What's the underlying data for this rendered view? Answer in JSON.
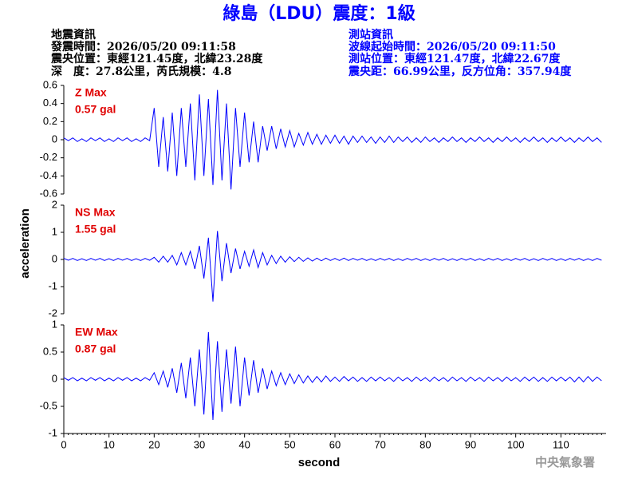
{
  "header": {
    "title": "綠島（LDU）震度：1級",
    "left": [
      "地震資訊",
      "發震時間：2026/05/20 09:11:58",
      "震央位置：東經121.45度，北緯23.28度",
      "深　度：27.8公里，芮氏規模：4.8"
    ],
    "right": [
      "測站資訊",
      "波線起始時間：2026/05/20 09:11:50",
      "測站位置：東經121.47度，北緯22.67度",
      "震央距：66.99公里，反方位角：357.94度"
    ],
    "footer": "中央氣象署"
  },
  "chart_data": [
    {
      "type": "line",
      "annotations": [
        "Z Max",
        "0.57 gal"
      ],
      "color": "#0000ff",
      "xlim": [
        0,
        120
      ],
      "ylim": [
        -0.6,
        0.6
      ],
      "yticks": [
        -0.6,
        -0.4,
        -0.2,
        0,
        0.2,
        0.4,
        0.6
      ],
      "x": [
        0,
        1,
        2,
        3,
        4,
        5,
        6,
        7,
        8,
        9,
        10,
        11,
        12,
        13,
        14,
        15,
        16,
        17,
        18,
        19,
        20,
        21,
        22,
        23,
        24,
        25,
        26,
        27,
        28,
        29,
        30,
        31,
        32,
        33,
        34,
        35,
        36,
        37,
        38,
        39,
        40,
        41,
        42,
        43,
        44,
        45,
        46,
        47,
        48,
        49,
        50,
        51,
        52,
        53,
        54,
        55,
        56,
        57,
        58,
        59,
        60,
        61,
        62,
        63,
        64,
        65,
        66,
        67,
        68,
        69,
        70,
        71,
        72,
        73,
        74,
        75,
        76,
        77,
        78,
        79,
        80,
        81,
        82,
        83,
        84,
        85,
        86,
        87,
        88,
        89,
        90,
        91,
        92,
        93,
        94,
        95,
        96,
        97,
        98,
        99,
        100,
        101,
        102,
        103,
        104,
        105,
        106,
        107,
        108,
        109,
        110,
        111,
        112,
        113,
        114,
        115,
        116,
        117,
        118,
        119
      ],
      "values": [
        0.02,
        -0.01,
        0.02,
        -0.02,
        0.01,
        -0.02,
        0.02,
        -0.01,
        0.02,
        -0.02,
        0.01,
        -0.02,
        0.02,
        -0.01,
        0.02,
        -0.02,
        0.01,
        -0.02,
        0.02,
        -0.01,
        0.35,
        -0.3,
        0.25,
        -0.35,
        0.3,
        -0.4,
        0.35,
        -0.3,
        0.4,
        -0.45,
        0.5,
        -0.4,
        0.45,
        -0.5,
        0.55,
        -0.45,
        0.4,
        -0.55,
        0.35,
        -0.3,
        0.3,
        -0.25,
        0.2,
        -0.25,
        0.15,
        -0.12,
        0.15,
        -0.1,
        0.12,
        -0.08,
        0.1,
        -0.08,
        0.07,
        -0.06,
        0.08,
        -0.05,
        0.06,
        -0.05,
        0.05,
        -0.04,
        0.05,
        -0.04,
        0.04,
        -0.05,
        0.04,
        -0.03,
        0.04,
        -0.03,
        0.03,
        -0.04,
        0.03,
        -0.03,
        0.04,
        -0.03,
        0.03,
        -0.02,
        0.03,
        -0.03,
        0.02,
        -0.03,
        0.03,
        -0.02,
        0.02,
        -0.03,
        0.02,
        -0.02,
        0.03,
        -0.02,
        0.02,
        -0.03,
        0.02,
        -0.02,
        0.03,
        -0.02,
        0.02,
        -0.03,
        0.02,
        -0.02,
        0.03,
        -0.02,
        0.02,
        -0.03,
        0.02,
        -0.02,
        0.03,
        -0.02,
        0.02,
        -0.03,
        0.02,
        -0.02,
        0.03,
        -0.02,
        0.02,
        -0.03,
        0.02,
        -0.02,
        0.03,
        -0.02,
        0.02,
        -0.03
      ]
    },
    {
      "type": "line",
      "annotations": [
        "NS Max",
        "1.55 gal"
      ],
      "color": "#0000ff",
      "y_label": "acceleration",
      "xlim": [
        0,
        120
      ],
      "ylim": [
        -2,
        2
      ],
      "yticks": [
        -2,
        -1,
        0,
        1,
        2
      ],
      "x": [
        0,
        1,
        2,
        3,
        4,
        5,
        6,
        7,
        8,
        9,
        10,
        11,
        12,
        13,
        14,
        15,
        16,
        17,
        18,
        19,
        20,
        21,
        22,
        23,
        24,
        25,
        26,
        27,
        28,
        29,
        30,
        31,
        32,
        33,
        34,
        35,
        36,
        37,
        38,
        39,
        40,
        41,
        42,
        43,
        44,
        45,
        46,
        47,
        48,
        49,
        50,
        51,
        52,
        53,
        54,
        55,
        56,
        57,
        58,
        59,
        60,
        61,
        62,
        63,
        64,
        65,
        66,
        67,
        68,
        69,
        70,
        71,
        72,
        73,
        74,
        75,
        76,
        77,
        78,
        79,
        80,
        81,
        82,
        83,
        84,
        85,
        86,
        87,
        88,
        89,
        90,
        91,
        92,
        93,
        94,
        95,
        96,
        97,
        98,
        99,
        100,
        101,
        102,
        103,
        104,
        105,
        106,
        107,
        108,
        109,
        110,
        111,
        112,
        113,
        114,
        115,
        116,
        117,
        118,
        119
      ],
      "values": [
        0.04,
        -0.03,
        0.04,
        -0.04,
        0.03,
        -0.04,
        0.04,
        -0.03,
        0.04,
        -0.04,
        0.03,
        -0.04,
        0.04,
        -0.03,
        0.04,
        -0.04,
        0.03,
        -0.04,
        0.04,
        -0.03,
        0.08,
        -0.1,
        0.12,
        -0.1,
        0.15,
        -0.2,
        0.25,
        -0.2,
        0.3,
        -0.35,
        0.5,
        -0.7,
        0.8,
        -1.55,
        1.05,
        -0.8,
        0.6,
        -0.5,
        0.4,
        -0.35,
        0.3,
        -0.25,
        0.35,
        -0.3,
        0.25,
        -0.2,
        0.15,
        -0.15,
        0.12,
        -0.1,
        0.1,
        -0.08,
        0.08,
        -0.07,
        0.06,
        -0.06,
        0.05,
        -0.05,
        0.05,
        -0.04,
        0.04,
        -0.04,
        0.05,
        -0.04,
        0.04,
        -0.03,
        0.04,
        -0.04,
        0.03,
        -0.04,
        0.04,
        -0.03,
        0.04,
        -0.04,
        0.03,
        -0.04,
        0.04,
        -0.03,
        0.04,
        -0.04,
        0.03,
        -0.04,
        0.04,
        -0.03,
        0.04,
        -0.04,
        0.03,
        -0.04,
        0.04,
        -0.03,
        0.04,
        -0.04,
        0.03,
        -0.04,
        0.04,
        -0.03,
        0.04,
        -0.04,
        0.03,
        -0.04,
        0.04,
        -0.03,
        0.04,
        -0.04,
        0.03,
        -0.04,
        0.04,
        -0.03,
        0.04,
        -0.04,
        0.03,
        -0.04,
        0.04,
        -0.03,
        0.04,
        -0.04,
        0.03,
        -0.04,
        0.04,
        -0.03
      ]
    },
    {
      "type": "line",
      "annotations": [
        "EW Max",
        "0.87 gal"
      ],
      "color": "#0000ff",
      "x_label": "second",
      "xlim": [
        0,
        120
      ],
      "ylim": [
        -1,
        1
      ],
      "yticks": [
        -1,
        -0.5,
        0,
        0.5,
        1
      ],
      "xticks": [
        0,
        10,
        20,
        30,
        40,
        50,
        60,
        70,
        80,
        90,
        100,
        110
      ],
      "x": [
        0,
        1,
        2,
        3,
        4,
        5,
        6,
        7,
        8,
        9,
        10,
        11,
        12,
        13,
        14,
        15,
        16,
        17,
        18,
        19,
        20,
        21,
        22,
        23,
        24,
        25,
        26,
        27,
        28,
        29,
        30,
        31,
        32,
        33,
        34,
        35,
        36,
        37,
        38,
        39,
        40,
        41,
        42,
        43,
        44,
        45,
        46,
        47,
        48,
        49,
        50,
        51,
        52,
        53,
        54,
        55,
        56,
        57,
        58,
        59,
        60,
        61,
        62,
        63,
        64,
        65,
        66,
        67,
        68,
        69,
        70,
        71,
        72,
        73,
        74,
        75,
        76,
        77,
        78,
        79,
        80,
        81,
        82,
        83,
        84,
        85,
        86,
        87,
        88,
        89,
        90,
        91,
        92,
        93,
        94,
        95,
        96,
        97,
        98,
        99,
        100,
        101,
        102,
        103,
        104,
        105,
        106,
        107,
        108,
        109,
        110,
        111,
        112,
        113,
        114,
        115,
        116,
        117,
        118,
        119
      ],
      "values": [
        0.03,
        -0.02,
        0.03,
        -0.03,
        0.02,
        -0.03,
        0.03,
        -0.02,
        0.03,
        -0.03,
        0.02,
        -0.03,
        0.03,
        -0.02,
        0.03,
        -0.03,
        0.02,
        -0.03,
        0.03,
        -0.02,
        0.12,
        -0.1,
        0.15,
        -0.15,
        0.2,
        -0.25,
        0.3,
        -0.35,
        0.4,
        -0.5,
        0.55,
        -0.65,
        0.87,
        -0.75,
        0.7,
        -0.6,
        0.55,
        -0.45,
        0.6,
        -0.5,
        0.4,
        -0.3,
        0.35,
        -0.25,
        0.2,
        -0.18,
        0.15,
        -0.12,
        0.12,
        -0.1,
        0.1,
        -0.08,
        0.08,
        -0.07,
        0.06,
        -0.06,
        0.05,
        -0.05,
        0.06,
        -0.04,
        0.04,
        -0.04,
        0.05,
        -0.03,
        0.04,
        -0.04,
        0.03,
        -0.04,
        0.04,
        -0.03,
        0.04,
        -0.03,
        0.03,
        -0.04,
        0.04,
        -0.03,
        0.03,
        -0.04,
        0.04,
        -0.03,
        0.03,
        -0.04,
        0.04,
        -0.03,
        0.03,
        -0.04,
        0.04,
        -0.03,
        0.03,
        -0.04,
        0.04,
        -0.03,
        0.03,
        -0.04,
        0.04,
        -0.03,
        0.03,
        -0.04,
        0.04,
        -0.03,
        0.03,
        -0.04,
        0.04,
        -0.03,
        0.04,
        -0.04,
        0.03,
        -0.04,
        0.04,
        -0.03,
        0.04,
        -0.03,
        0.04,
        -0.05,
        0.04,
        -0.05,
        0.05,
        -0.04,
        0.04,
        -0.03
      ]
    }
  ]
}
